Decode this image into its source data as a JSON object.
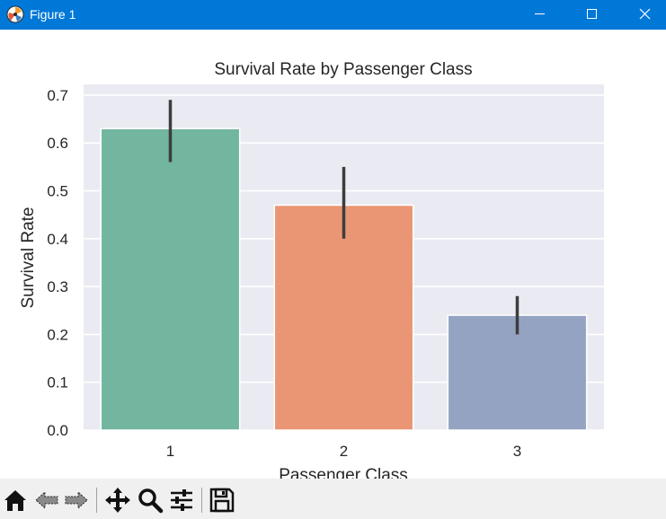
{
  "window": {
    "title": "Figure 1"
  },
  "icons": {
    "app": "matplotlib-logo-icon",
    "minimize": "minimize-icon",
    "maximize": "maximize-icon",
    "close": "close-icon"
  },
  "toolbar": {
    "items": [
      "home-icon",
      "back-arrow-icon",
      "forward-arrow-icon",
      "pan-move-icon",
      "zoom-magnifier-icon",
      "configure-subplots-icon",
      "save-disk-icon"
    ]
  },
  "chart_data": {
    "type": "bar",
    "title": "Survival Rate by Passenger Class",
    "xlabel": "Passenger Class",
    "ylabel": "Survival Rate",
    "categories": [
      "1",
      "2",
      "3"
    ],
    "values": [
      0.63,
      0.47,
      0.24
    ],
    "error_bars": [
      [
        0.56,
        0.69
      ],
      [
        0.4,
        0.55
      ],
      [
        0.2,
        0.28
      ]
    ],
    "colors": [
      "#72b6a0",
      "#ea9674",
      "#94a3c1"
    ],
    "ylim": [
      0,
      0.72
    ],
    "yticks": [
      0.0,
      0.1,
      0.2,
      0.3,
      0.4,
      0.5,
      0.6,
      0.7
    ],
    "ytick_labels": [
      "0.0",
      "0.1",
      "0.2",
      "0.3",
      "0.4",
      "0.5",
      "0.6",
      "0.7"
    ],
    "grid": true,
    "background": "#eaeaf2"
  }
}
